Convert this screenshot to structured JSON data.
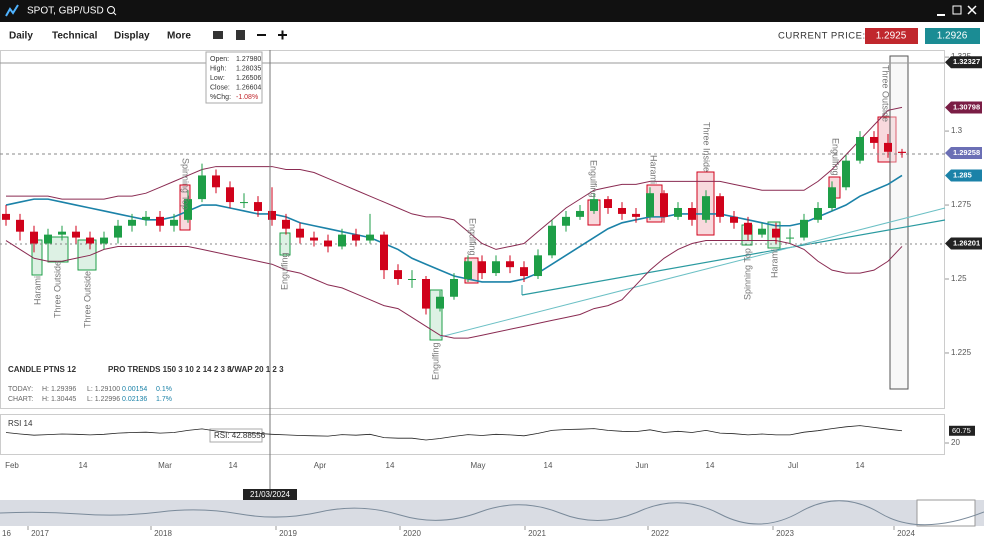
{
  "window": {
    "title": "SPOT, GBP/USD"
  },
  "toolbar": {
    "menus": [
      "Daily",
      "Technical",
      "Display",
      "More"
    ],
    "current_price_label": "CURRENT PRICE:",
    "bid": "1.2925",
    "ask": "1.2926"
  },
  "chart_data": {
    "type": "candlestick",
    "ylim": [
      1.2064,
      1.3274
    ],
    "yticks": [
      1.325,
      1.3,
      1.275,
      1.25,
      1.225
    ],
    "x_tick_labels": [
      "Feb",
      "14",
      "Mar",
      "14",
      "Apr",
      "14",
      "May",
      "14",
      "Jun",
      "14",
      "Jul",
      "14"
    ],
    "up_color": "#1e9e47",
    "down_color": "#d0021b",
    "candles": [
      [
        1.272,
        1.275,
        1.268,
        1.27
      ],
      [
        1.27,
        1.272,
        1.263,
        1.266
      ],
      [
        1.266,
        1.268,
        1.259,
        1.262
      ],
      [
        1.262,
        1.267,
        1.26,
        1.265
      ],
      [
        1.265,
        1.268,
        1.263,
        1.266
      ],
      [
        1.266,
        1.268,
        1.262,
        1.264
      ],
      [
        1.264,
        1.266,
        1.26,
        1.262
      ],
      [
        1.262,
        1.266,
        1.26,
        1.264
      ],
      [
        1.264,
        1.27,
        1.262,
        1.268
      ],
      [
        1.268,
        1.272,
        1.266,
        1.27
      ],
      [
        1.27,
        1.273,
        1.268,
        1.271
      ],
      [
        1.271,
        1.273,
        1.266,
        1.268
      ],
      [
        1.268,
        1.272,
        1.266,
        1.27
      ],
      [
        1.27,
        1.28,
        1.269,
        1.277
      ],
      [
        1.277,
        1.289,
        1.276,
        1.285
      ],
      [
        1.285,
        1.287,
        1.279,
        1.281
      ],
      [
        1.281,
        1.283,
        1.274,
        1.276
      ],
      [
        1.276,
        1.279,
        1.274,
        1.276
      ],
      [
        1.276,
        1.278,
        1.271,
        1.273
      ],
      [
        1.273,
        1.281,
        1.268,
        1.27
      ],
      [
        1.27,
        1.272,
        1.265,
        1.267
      ],
      [
        1.267,
        1.269,
        1.262,
        1.264
      ],
      [
        1.264,
        1.266,
        1.261,
        1.263
      ],
      [
        1.263,
        1.265,
        1.259,
        1.261
      ],
      [
        1.261,
        1.267,
        1.26,
        1.265
      ],
      [
        1.265,
        1.267,
        1.261,
        1.263
      ],
      [
        1.263,
        1.272,
        1.262,
        1.265
      ],
      [
        1.265,
        1.266,
        1.25,
        1.253
      ],
      [
        1.253,
        1.255,
        1.248,
        1.25
      ],
      [
        1.25,
        1.253,
        1.247,
        1.25
      ],
      [
        1.25,
        1.251,
        1.238,
        1.24
      ],
      [
        1.24,
        1.246,
        1.239,
        1.244
      ],
      [
        1.244,
        1.252,
        1.243,
        1.25
      ],
      [
        1.25,
        1.258,
        1.249,
        1.256
      ],
      [
        1.256,
        1.258,
        1.25,
        1.252
      ],
      [
        1.252,
        1.258,
        1.251,
        1.256
      ],
      [
        1.256,
        1.258,
        1.252,
        1.254
      ],
      [
        1.254,
        1.256,
        1.249,
        1.251
      ],
      [
        1.251,
        1.26,
        1.25,
        1.258
      ],
      [
        1.258,
        1.27,
        1.257,
        1.268
      ],
      [
        1.268,
        1.273,
        1.266,
        1.271
      ],
      [
        1.271,
        1.275,
        1.27,
        1.273
      ],
      [
        1.273,
        1.279,
        1.272,
        1.277
      ],
      [
        1.277,
        1.278,
        1.272,
        1.274
      ],
      [
        1.274,
        1.276,
        1.27,
        1.272
      ],
      [
        1.272,
        1.274,
        1.269,
        1.271
      ],
      [
        1.271,
        1.281,
        1.27,
        1.279
      ],
      [
        1.279,
        1.28,
        1.269,
        1.271
      ],
      [
        1.271,
        1.276,
        1.27,
        1.274
      ],
      [
        1.274,
        1.276,
        1.268,
        1.27
      ],
      [
        1.27,
        1.28,
        1.269,
        1.278
      ],
      [
        1.278,
        1.279,
        1.269,
        1.271
      ],
      [
        1.271,
        1.273,
        1.267,
        1.269
      ],
      [
        1.269,
        1.271,
        1.263,
        1.265
      ],
      [
        1.265,
        1.269,
        1.264,
        1.267
      ],
      [
        1.267,
        1.269,
        1.262,
        1.264
      ],
      [
        1.264,
        1.267,
        1.262,
        1.264
      ],
      [
        1.264,
        1.272,
        1.263,
        1.27
      ],
      [
        1.27,
        1.276,
        1.269,
        1.274
      ],
      [
        1.274,
        1.283,
        1.273,
        1.281
      ],
      [
        1.281,
        1.292,
        1.28,
        1.29
      ],
      [
        1.29,
        1.3,
        1.289,
        1.298
      ],
      [
        1.298,
        1.3,
        1.294,
        1.296
      ],
      [
        1.296,
        1.299,
        1.291,
        1.293
      ],
      [
        1.293,
        1.294,
        1.291,
        1.2926
      ]
    ],
    "moving_average": {
      "color": "#1b82a8",
      "values": [
        1.275,
        1.276,
        1.277,
        1.277,
        1.276,
        1.275,
        1.274,
        1.273,
        1.272,
        1.271,
        1.27,
        1.27,
        1.271,
        1.273,
        1.275,
        1.275,
        1.274,
        1.273,
        1.272,
        1.272,
        1.271,
        1.269,
        1.268,
        1.267,
        1.266,
        1.265,
        1.264,
        1.262,
        1.26,
        1.257,
        1.255,
        1.253,
        1.251,
        1.25,
        1.249,
        1.249,
        1.249,
        1.25,
        1.252,
        1.255,
        1.258,
        1.261,
        1.264,
        1.267,
        1.269,
        1.27,
        1.271,
        1.271,
        1.272,
        1.272,
        1.272,
        1.272,
        1.271,
        1.27,
        1.269,
        1.268,
        1.268,
        1.269,
        1.271,
        1.273,
        1.275,
        1.278,
        1.28,
        1.282,
        1.285
      ]
    },
    "band_upper": {
      "color": "#8a2b52",
      "values": [
        1.278,
        1.278,
        1.278,
        1.278,
        1.277,
        1.277,
        1.277,
        1.277,
        1.278,
        1.278,
        1.279,
        1.281,
        1.283,
        1.285,
        1.287,
        1.288,
        1.288,
        1.288,
        1.288,
        1.288,
        1.287,
        1.287,
        1.286,
        1.284,
        1.282,
        1.28,
        1.278,
        1.276,
        1.274,
        1.272,
        1.271,
        1.271,
        1.27,
        1.266,
        1.262,
        1.26,
        1.261,
        1.262,
        1.266,
        1.27,
        1.274,
        1.277,
        1.28,
        1.281,
        1.282,
        1.282,
        1.283,
        1.283,
        1.283,
        1.283,
        1.283,
        1.283,
        1.282,
        1.281,
        1.28,
        1.28,
        1.28,
        1.28,
        1.283,
        1.287,
        1.292,
        1.297,
        1.302,
        1.307,
        1.308
      ]
    },
    "band_lower": {
      "color": "#8a2b52",
      "values": [
        1.263,
        1.26,
        1.257,
        1.256,
        1.256,
        1.257,
        1.258,
        1.26,
        1.261,
        1.261,
        1.261,
        1.261,
        1.261,
        1.261,
        1.26,
        1.259,
        1.258,
        1.257,
        1.256,
        1.255,
        1.253,
        1.252,
        1.25,
        1.248,
        1.247,
        1.245,
        1.243,
        1.241,
        1.24,
        1.237,
        1.234,
        1.231,
        1.23,
        1.23,
        1.231,
        1.232,
        1.233,
        1.234,
        1.235,
        1.236,
        1.237,
        1.238,
        1.24,
        1.241,
        1.243,
        1.248,
        1.253,
        1.257,
        1.26,
        1.262,
        1.263,
        1.263,
        1.263,
        1.263,
        1.263,
        1.263,
        1.262,
        1.26,
        1.256,
        1.253,
        1.252,
        1.252,
        1.253,
        1.256,
        1.261
      ]
    },
    "price_tags": [
      {
        "value": 1.32327,
        "color": "#222222"
      },
      {
        "value": 1.30798,
        "color": "#7a1d45"
      },
      {
        "value": 1.29258,
        "color": "#6b6fb5"
      },
      {
        "value": 1.285,
        "color": "#1b82a8"
      },
      {
        "value": 1.26201,
        "color": "#222222"
      }
    ],
    "patterns": [
      "Harami",
      "Three Outside",
      "Three Outside",
      "Spinning Top",
      "Engulfing",
      "Engulfing",
      "Engulfing",
      "Engulfing",
      "Harami",
      "Three Inside",
      "Spinning Top",
      "Harami",
      "Engulfing",
      "Three Outside"
    ],
    "tooltip": [
      [
        "Open:",
        "1.27980"
      ],
      [
        "High:",
        "1.28035"
      ],
      [
        "Low:",
        "1.26506"
      ],
      [
        "Close:",
        "1.26604"
      ],
      [
        "%Chg:",
        "-1.08%"
      ]
    ],
    "crosshair_date": "21/03/2024"
  },
  "indicators": {
    "candle_ptns": "CANDLE PTNS 12",
    "pro_trends": "PRO TRENDS 150 3 10 2 14 2 3 8",
    "vwap": "VWAP 20 1 2 3",
    "today": [
      "TODAY:",
      "H: 1.29396",
      "L: 1.29100",
      "0.00154",
      "0.1%"
    ],
    "chart": [
      "CHART:",
      "H: 1.30445",
      "L: 1.22996",
      "0.02136",
      "1.7%"
    ]
  },
  "rsi": {
    "label": "RSI 14",
    "tooltip": "RSI: 42.88556",
    "ylim": [
      0,
      100
    ],
    "yticks": [
      20
    ],
    "color": "#222222",
    "values": [
      55,
      50,
      46,
      48,
      50,
      49,
      47,
      49,
      53,
      55,
      56,
      53,
      55,
      62,
      67,
      60,
      55,
      55,
      52,
      49,
      47,
      45,
      44,
      43,
      48,
      46,
      49,
      38,
      36,
      36,
      30,
      35,
      42,
      48,
      45,
      49,
      47,
      44,
      52,
      62,
      65,
      66,
      68,
      62,
      59,
      58,
      64,
      55,
      59,
      55,
      62,
      53,
      51,
      47,
      50,
      47,
      47,
      56,
      61,
      68,
      74,
      78,
      72,
      66,
      60.75
    ]
  },
  "navigator": {
    "start": "16",
    "years": [
      "2017",
      "2018",
      "2019",
      "2020",
      "2021",
      "2022",
      "2023",
      "2024"
    ]
  }
}
